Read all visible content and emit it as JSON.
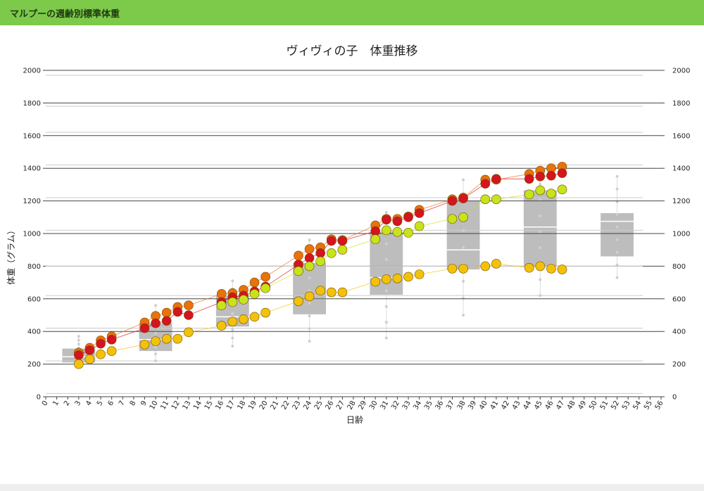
{
  "header": {
    "title": "マルプーの週齢別標準体重"
  },
  "colors": {
    "header_bg": "#7dc94a",
    "box_fill": "#bdbdbd",
    "series_orange": "#e8720c",
    "series_red": "#d4141e",
    "series_lime": "#c6e41a",
    "series_yellow": "#f2c20a"
  },
  "chart_data": {
    "type": "scatter",
    "title": "ヴィヴィの子　体重推移",
    "xlabel": "日齢",
    "ylabel": "体重（グラム）",
    "xlim": [
      0,
      56
    ],
    "ylim": [
      0,
      2000
    ],
    "x_ticks": [
      0,
      1,
      2,
      3,
      4,
      5,
      6,
      7,
      8,
      9,
      10,
      11,
      12,
      13,
      14,
      15,
      16,
      17,
      18,
      19,
      20,
      21,
      22,
      23,
      24,
      25,
      26,
      27,
      28,
      29,
      30,
      31,
      32,
      33,
      34,
      35,
      36,
      37,
      38,
      39,
      40,
      41,
      42,
      43,
      44,
      45,
      46,
      47,
      48,
      49,
      50,
      51,
      52,
      53,
      54,
      55,
      56
    ],
    "y_ticks": [
      0,
      200,
      400,
      600,
      800,
      1000,
      1200,
      1400,
      1600,
      1800,
      2000
    ],
    "grid": true,
    "boxplots": [
      {
        "x_center": 3,
        "x_range": [
          1.5,
          4.5
        ],
        "q1": 210,
        "median": 245,
        "q3": 295,
        "whisker_low": 180,
        "whisker_high": 370
      },
      {
        "x_center": 10,
        "x_range": [
          8.5,
          11.5
        ],
        "q1": 280,
        "median": 350,
        "q3": 450,
        "whisker_low": 220,
        "whisker_high": 560
      },
      {
        "x_center": 17,
        "x_range": [
          15.5,
          18.5
        ],
        "q1": 430,
        "median": 490,
        "q3": 620,
        "whisker_low": 310,
        "whisker_high": 710
      },
      {
        "x_center": 24,
        "x_range": [
          22.5,
          25.5
        ],
        "q1": 505,
        "median": 600,
        "q3": 820,
        "whisker_low": 340,
        "whisker_high": 960
      },
      {
        "x_center": 31,
        "x_range": [
          29.5,
          32.5
        ],
        "q1": 625,
        "median": 730,
        "q3": 1010,
        "whisker_low": 360,
        "whisker_high": 1130
      },
      {
        "x_center": 38,
        "x_range": [
          36.5,
          39.5
        ],
        "q1": 780,
        "median": 900,
        "q3": 1200,
        "whisker_low": 500,
        "whisker_high": 1330
      },
      {
        "x_center": 45,
        "x_range": [
          43.5,
          46.5
        ],
        "q1": 800,
        "median": 1040,
        "q3": 1265,
        "whisker_low": 620,
        "whisker_high": 1400
      },
      {
        "x_center": 52,
        "x_range": [
          50.5,
          53.5
        ],
        "q1": 860,
        "median": 1075,
        "q3": 1125,
        "whisker_low": 730,
        "whisker_high": 1350
      }
    ],
    "series": [
      {
        "color": "#e8720c",
        "x": [
          3,
          4,
          5,
          6,
          9,
          10,
          11,
          12,
          13,
          16,
          17,
          18,
          19,
          20,
          23,
          24,
          25,
          26,
          27,
          30,
          31,
          32,
          33,
          34,
          37,
          38,
          40,
          41,
          44,
          45,
          46,
          47
        ],
        "y": [
          270,
          300,
          345,
          370,
          455,
          495,
          515,
          550,
          560,
          630,
          635,
          655,
          700,
          735,
          865,
          905,
          915,
          965,
          960,
          1050,
          1090,
          1090,
          1105,
          1145,
          1210,
          1220,
          1330,
          1330,
          1365,
          1385,
          1400,
          1410
        ]
      },
      {
        "color": "#d4141e",
        "x": [
          3,
          4,
          5,
          6,
          9,
          10,
          11,
          12,
          13,
          16,
          17,
          18,
          19,
          20,
          23,
          24,
          25,
          26,
          27,
          30,
          31,
          32,
          33,
          34,
          37,
          38,
          40,
          41,
          44,
          45,
          46,
          47
        ],
        "y": [
          255,
          285,
          325,
          350,
          420,
          450,
          465,
          520,
          500,
          580,
          610,
          620,
          645,
          675,
          810,
          850,
          880,
          955,
          955,
          1015,
          1085,
          1075,
          1100,
          1125,
          1200,
          1215,
          1305,
          1335,
          1335,
          1350,
          1355,
          1370
        ]
      },
      {
        "color": "#c6e41a",
        "x": [
          16,
          17,
          18,
          19,
          20,
          23,
          24,
          25,
          26,
          27,
          30,
          31,
          32,
          33,
          34,
          37,
          38,
          40,
          41,
          44,
          45,
          46,
          47
        ],
        "y": [
          560,
          580,
          595,
          630,
          665,
          770,
          800,
          830,
          880,
          900,
          965,
          1020,
          1010,
          1005,
          1045,
          1090,
          1100,
          1210,
          1210,
          1240,
          1265,
          1245,
          1270
        ]
      },
      {
        "color": "#f2c20a",
        "x": [
          3,
          4,
          5,
          6,
          9,
          10,
          11,
          12,
          13,
          16,
          17,
          18,
          19,
          20,
          23,
          24,
          25,
          26,
          27,
          30,
          31,
          32,
          33,
          34,
          37,
          38,
          40,
          41,
          44,
          45,
          46,
          47
        ],
        "y": [
          200,
          230,
          260,
          280,
          320,
          340,
          355,
          355,
          395,
          435,
          460,
          475,
          490,
          515,
          585,
          615,
          650,
          640,
          640,
          705,
          720,
          725,
          735,
          750,
          785,
          785,
          800,
          815,
          790,
          800,
          785,
          780
        ]
      }
    ]
  }
}
